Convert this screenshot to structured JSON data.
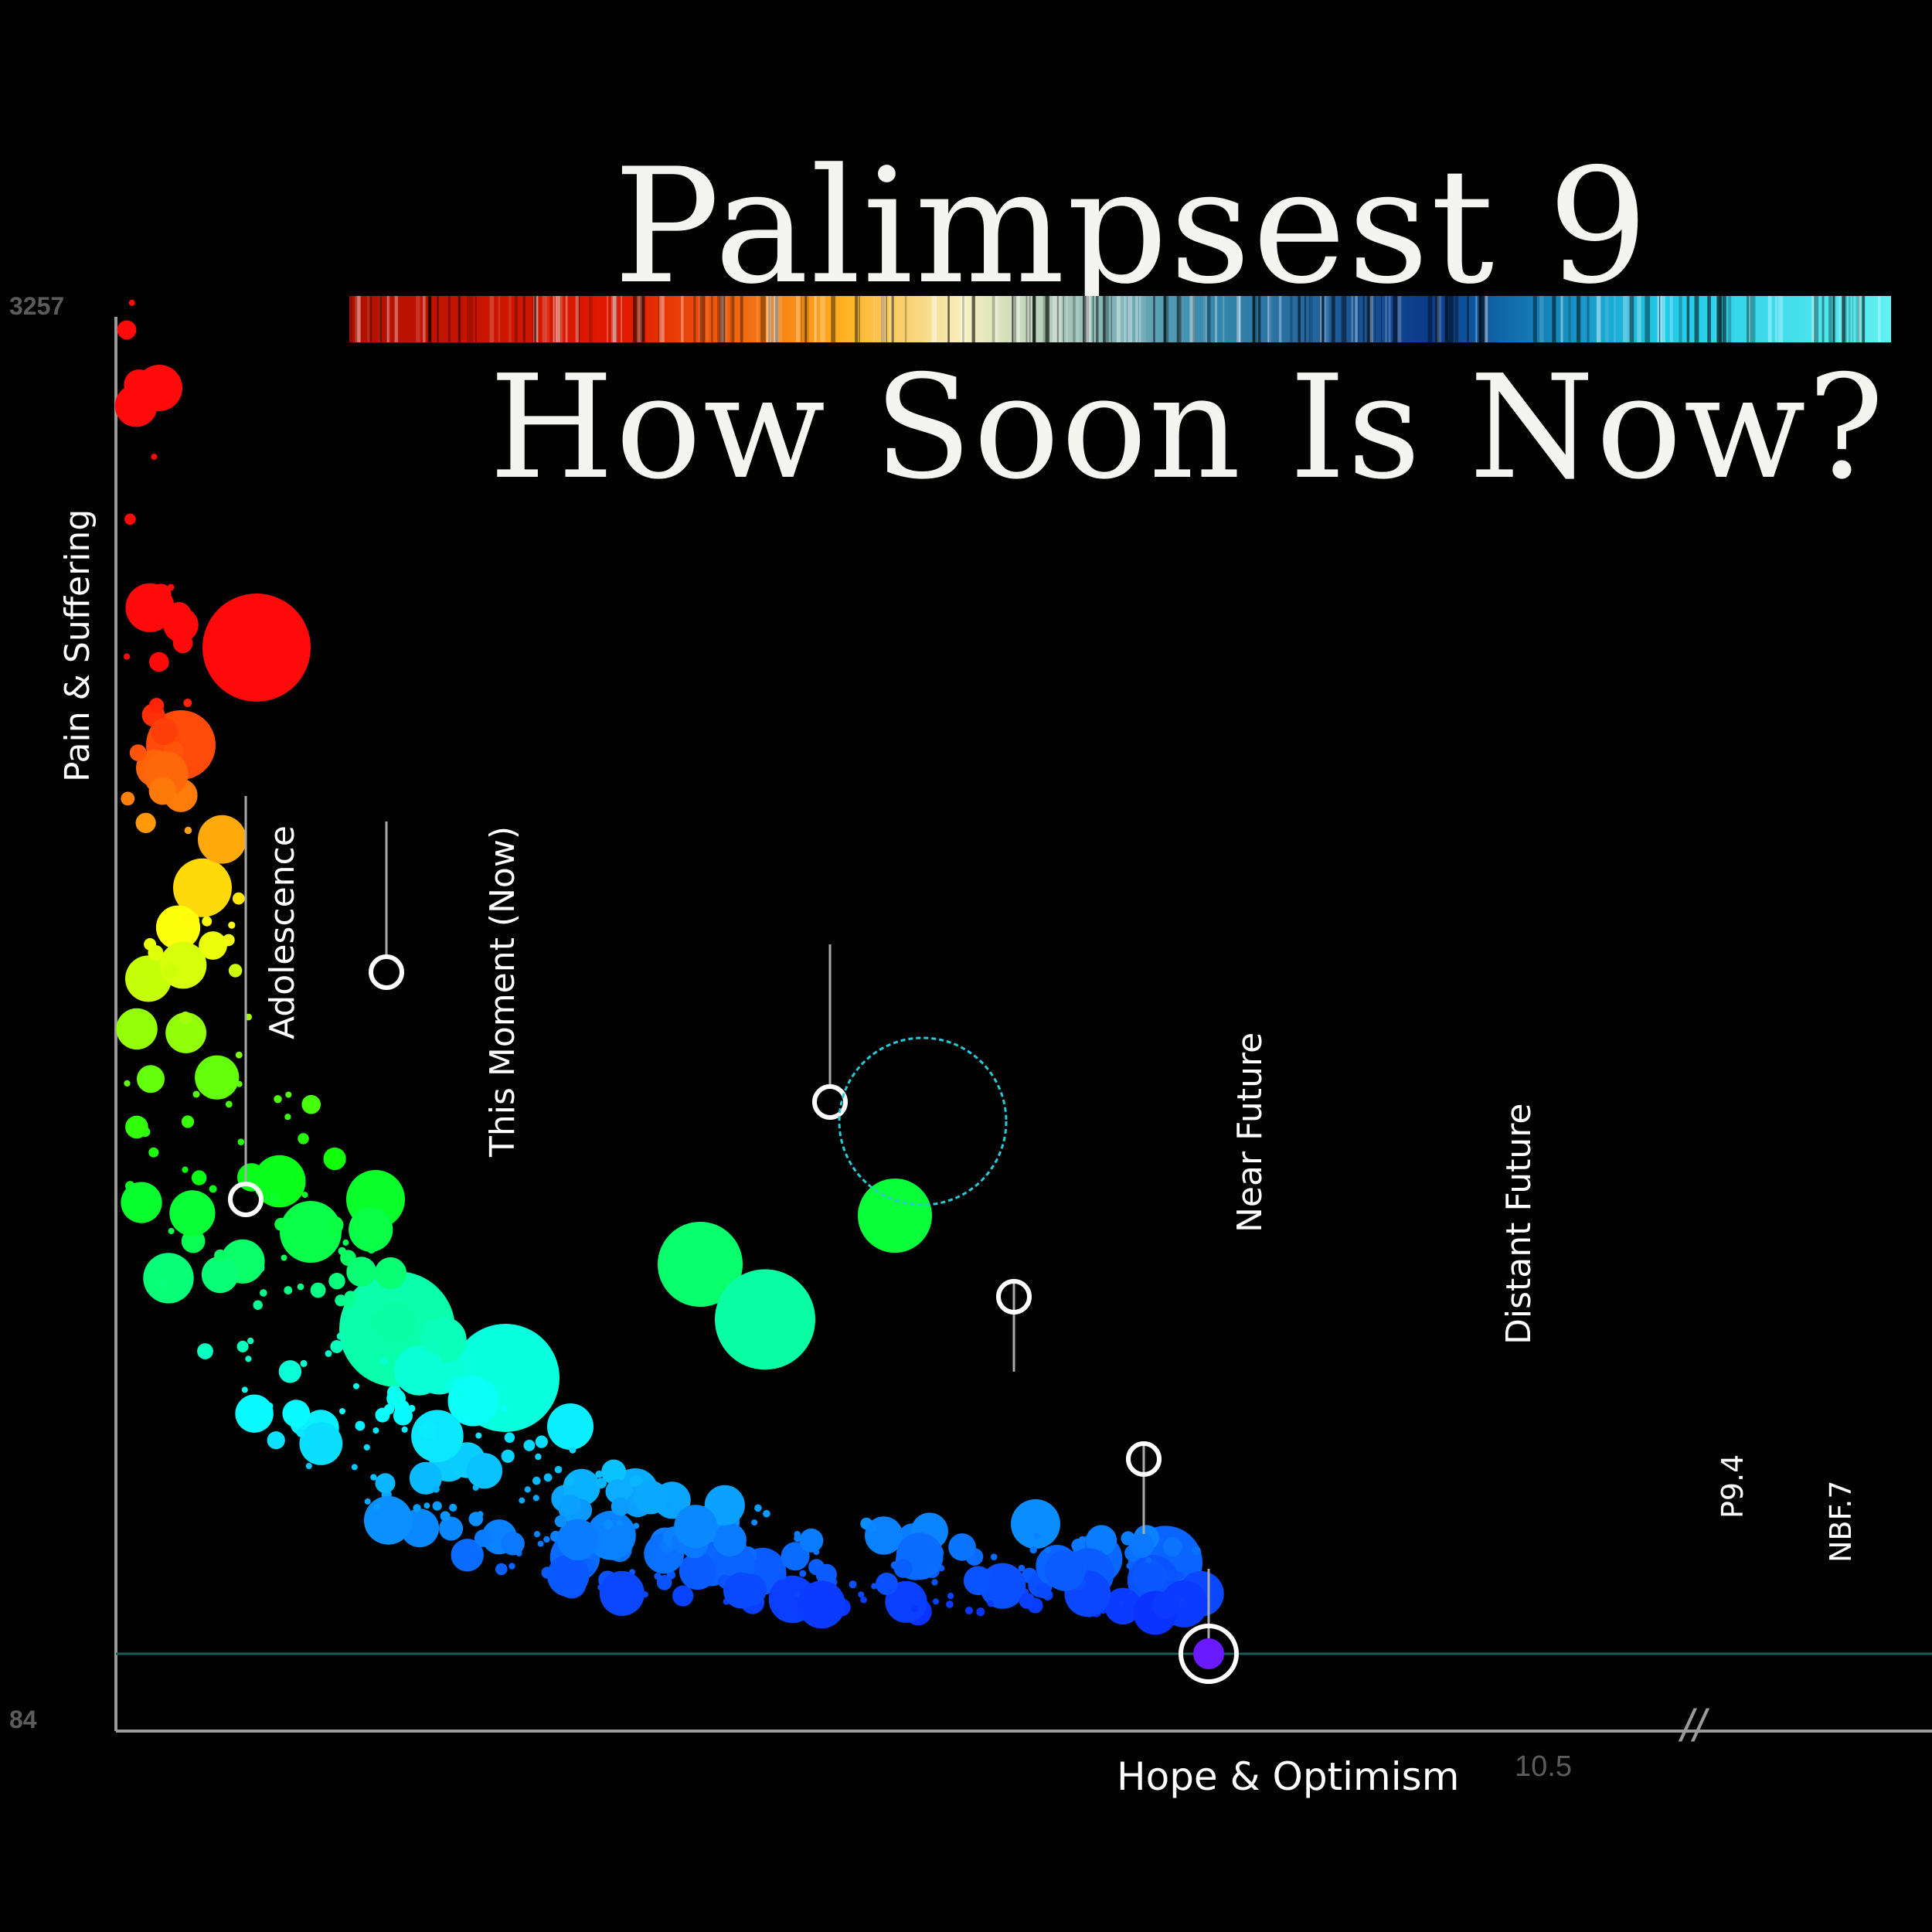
{
  "title_line1": "Palimpsest 9",
  "title_line2": "How Soon Is Now?",
  "colors": {
    "background": "#000000",
    "axis": "#9a9a9a",
    "marker_ring": "#ffffff",
    "accent_cyan": "#29c9d6"
  },
  "chart_data": {
    "type": "scatter",
    "title": "",
    "xlabel": "Hope & Optimism",
    "ylabel": "Pain & Suffering",
    "y_ticks": [
      "3257",
      "84"
    ],
    "x_ticks": [
      "10.5"
    ],
    "axis_break": "//",
    "annotations": [
      {
        "label": "Adolescence",
        "x": 1.2,
        "y": 140
      },
      {
        "label": "This Moment (Now)",
        "x": 2.5,
        "y": 210
      },
      {
        "label": "Near Future",
        "x": 6.6,
        "y": 170
      },
      {
        "label": "Distant Future",
        "x": 8.3,
        "y": 110
      },
      {
        "label": "P9.4",
        "x": 9.5,
        "y": 60
      },
      {
        "label": "NBF.7",
        "x": 10.1,
        "y": 0
      }
    ]
  }
}
